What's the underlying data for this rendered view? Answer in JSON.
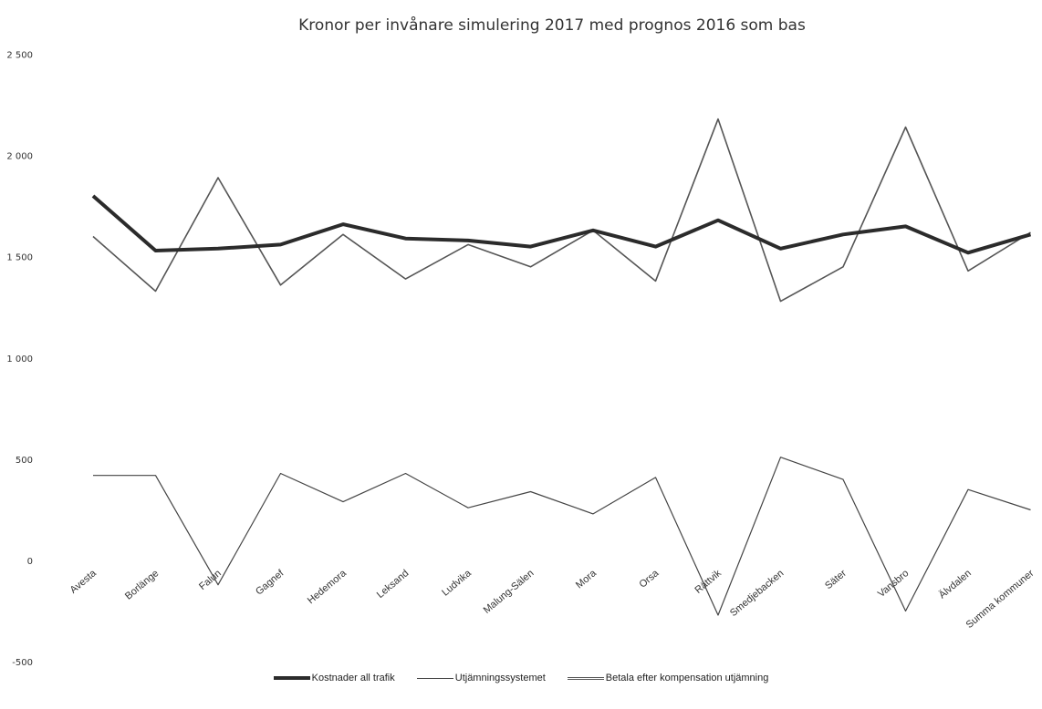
{
  "chart_data": {
    "type": "line",
    "title": "Kronor per invånare simulering 2017 med prognos 2016 som bas",
    "categories": [
      "Avesta",
      "Borlänge",
      "Falun",
      "Gagnef",
      "Hedemora",
      "Leksand",
      "Ludvika",
      "Malung-Sälen",
      "Mora",
      "Orsa",
      "Rättvik",
      "Smedjebacken",
      "Säter",
      "Vansbro",
      "Älvdalen",
      "Summa kommuner"
    ],
    "ylim": [
      -500,
      2500
    ],
    "yticks": [
      "-500",
      "0",
      "500",
      "1 000",
      "1 500",
      "2 000",
      "2 500"
    ],
    "ytick_values": [
      -500,
      0,
      500,
      1000,
      1500,
      2000,
      2500
    ],
    "grid": false,
    "legend_position": "bottom",
    "series": [
      {
        "name": "Kostnader all trafik",
        "values": [
          1800,
          1530,
          1540,
          1560,
          1660,
          1590,
          1580,
          1550,
          1630,
          1550,
          1680,
          1540,
          1610,
          1650,
          1520,
          1610
        ],
        "color": "#2b2b2b"
      },
      {
        "name": "Utjämningssystemet",
        "values": [
          420,
          420,
          -120,
          430,
          290,
          430,
          260,
          340,
          230,
          410,
          -270,
          510,
          400,
          -250,
          350,
          250
        ],
        "color": "#444444"
      },
      {
        "name": "Betala efter kompensation utjämning",
        "values": [
          1600,
          1330,
          1890,
          1360,
          1610,
          1390,
          1560,
          1450,
          1630,
          1380,
          2180,
          1280,
          1450,
          2140,
          1430,
          1620
        ],
        "color": "#555555"
      }
    ]
  }
}
